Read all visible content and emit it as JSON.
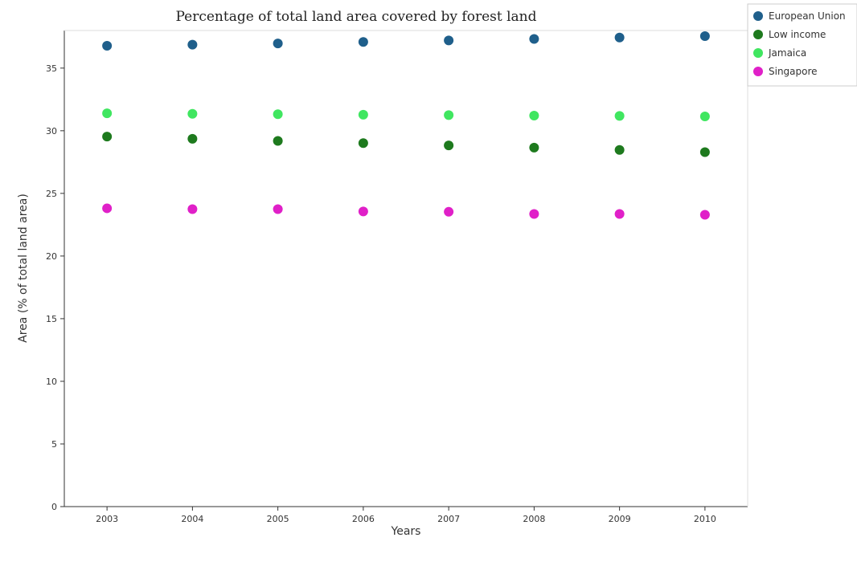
{
  "chart_data": {
    "type": "scatter",
    "title": "Percentage of total land area covered by forest land",
    "xlabel": "Years",
    "ylabel": "Area (% of total land area)",
    "x": [
      "2003",
      "2004",
      "2005",
      "2006",
      "2007",
      "2008",
      "2009",
      "2010"
    ],
    "ylim": [
      0,
      38
    ],
    "yticks": [
      0,
      5,
      10,
      15,
      20,
      25,
      30,
      35
    ],
    "grid": false,
    "legend_position": "top-right",
    "series": [
      {
        "name": "European Union",
        "color": "#1f5f8b",
        "values": [
          36.78,
          36.87,
          36.97,
          37.09,
          37.21,
          37.33,
          37.44,
          37.55
        ]
      },
      {
        "name": "Low income",
        "color": "#1e7a1e",
        "values": [
          29.53,
          29.36,
          29.19,
          29.01,
          28.83,
          28.65,
          28.47,
          28.29
        ]
      },
      {
        "name": "Jamaica",
        "color": "#40e660",
        "values": [
          31.39,
          31.35,
          31.32,
          31.28,
          31.25,
          31.21,
          31.18,
          31.14
        ]
      },
      {
        "name": "Singapore",
        "color": "#e020c8",
        "values": [
          23.81,
          23.74,
          23.74,
          23.56,
          23.53,
          23.36,
          23.36,
          23.29
        ]
      }
    ]
  }
}
